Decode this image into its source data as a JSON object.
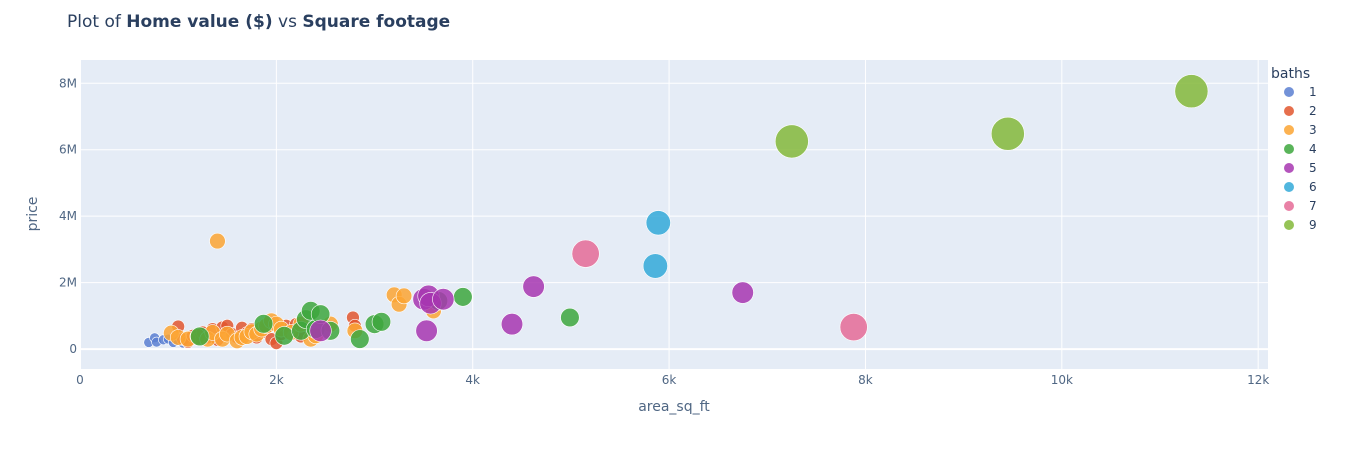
{
  "title": {
    "prefix": "Plot of ",
    "y_label_bold": "Home value ($)",
    "middle": " vs ",
    "x_label_bold": "Square footage"
  },
  "chart_data": {
    "type": "scatter",
    "xlabel": "area_sq_ft",
    "ylabel": "price",
    "xlim": [
      0,
      12100
    ],
    "ylim": [
      -600000,
      8700000
    ],
    "x_ticks": [
      0,
      2000,
      4000,
      6000,
      8000,
      10000,
      12000
    ],
    "x_tick_labels": [
      "0",
      "2k",
      "4k",
      "6k",
      "8k",
      "10k",
      "12k"
    ],
    "y_ticks": [
      0,
      2000000,
      4000000,
      6000000,
      8000000
    ],
    "y_tick_labels": [
      "0",
      "2M",
      "4M",
      "6M",
      "8M"
    ],
    "grid": true,
    "legend_title": "baths",
    "legend_position": "right",
    "size_encoding": "baths",
    "series": [
      {
        "name": "1",
        "color": "#5b7fd1",
        "points": [
          [
            700,
            200000
          ],
          [
            760,
            340000
          ],
          [
            780,
            210000
          ],
          [
            850,
            280000
          ],
          [
            900,
            300000
          ],
          [
            950,
            200000
          ],
          [
            1000,
            250000
          ],
          [
            1050,
            180000
          ]
        ]
      },
      {
        "name": "2",
        "color": "#e2562e",
        "points": [
          [
            1000,
            680000
          ],
          [
            1050,
            300000
          ],
          [
            1100,
            220000
          ],
          [
            1150,
            400000
          ],
          [
            1200,
            300000
          ],
          [
            1250,
            500000
          ],
          [
            1300,
            350000
          ],
          [
            1350,
            600000
          ],
          [
            1400,
            280000
          ],
          [
            1450,
            650000
          ],
          [
            1500,
            700000
          ],
          [
            1550,
            450000
          ],
          [
            1600,
            350000
          ],
          [
            1650,
            640000
          ],
          [
            1700,
            480000
          ],
          [
            1750,
            600000
          ],
          [
            1800,
            350000
          ],
          [
            1850,
            500000
          ],
          [
            1900,
            650000
          ],
          [
            1950,
            300000
          ],
          [
            2000,
            180000
          ],
          [
            2050,
            450000
          ],
          [
            2100,
            700000
          ],
          [
            2200,
            750000
          ],
          [
            2250,
            380000
          ],
          [
            2780,
            950000
          ],
          [
            2800,
            700000
          ]
        ]
      },
      {
        "name": "3",
        "color": "#fba533",
        "points": [
          [
            930,
            480000
          ],
          [
            1000,
            350000
          ],
          [
            1100,
            300000
          ],
          [
            1200,
            380000
          ],
          [
            1300,
            300000
          ],
          [
            1350,
            500000
          ],
          [
            1400,
            3250000
          ],
          [
            1450,
            300000
          ],
          [
            1500,
            450000
          ],
          [
            1600,
            250000
          ],
          [
            1650,
            350000
          ],
          [
            1700,
            380000
          ],
          [
            1750,
            520000
          ],
          [
            1800,
            450000
          ],
          [
            1850,
            600000
          ],
          [
            1900,
            700000
          ],
          [
            1950,
            850000
          ],
          [
            2000,
            750000
          ],
          [
            2050,
            600000
          ],
          [
            2150,
            500000
          ],
          [
            2250,
            750000
          ],
          [
            2350,
            300000
          ],
          [
            2400,
            400000
          ],
          [
            2550,
            750000
          ],
          [
            2800,
            550000
          ],
          [
            3200,
            1630000
          ],
          [
            3250,
            1350000
          ],
          [
            3300,
            1600000
          ],
          [
            3600,
            1150000
          ]
        ]
      },
      {
        "name": "4",
        "color": "#3da73d",
        "points": [
          [
            1220,
            380000
          ],
          [
            1870,
            760000
          ],
          [
            2080,
            400000
          ],
          [
            2250,
            550000
          ],
          [
            2300,
            900000
          ],
          [
            2350,
            1150000
          ],
          [
            2400,
            600000
          ],
          [
            2450,
            1050000
          ],
          [
            2550,
            550000
          ],
          [
            2850,
            300000
          ],
          [
            3000,
            750000
          ],
          [
            3070,
            820000
          ],
          [
            3650,
            1450000
          ],
          [
            3900,
            1570000
          ],
          [
            4990,
            950000
          ]
        ]
      },
      {
        "name": "5",
        "color": "#a736b0",
        "points": [
          [
            2450,
            550000
          ],
          [
            3500,
            1500000
          ],
          [
            3530,
            550000
          ],
          [
            3550,
            1600000
          ],
          [
            3570,
            1380000
          ],
          [
            3700,
            1500000
          ],
          [
            4400,
            750000
          ],
          [
            4620,
            1880000
          ],
          [
            6750,
            1700000
          ]
        ]
      },
      {
        "name": "6",
        "color": "#32a9d8",
        "points": [
          [
            5860,
            2500000
          ],
          [
            5890,
            3800000
          ]
        ]
      },
      {
        "name": "7",
        "color": "#e56b97",
        "points": [
          [
            5150,
            2870000
          ],
          [
            7880,
            660000
          ]
        ]
      },
      {
        "name": "9",
        "color": "#84b93a",
        "points": [
          [
            7250,
            6250000
          ],
          [
            9450,
            6480000
          ],
          [
            11320,
            7760000
          ]
        ]
      }
    ]
  }
}
